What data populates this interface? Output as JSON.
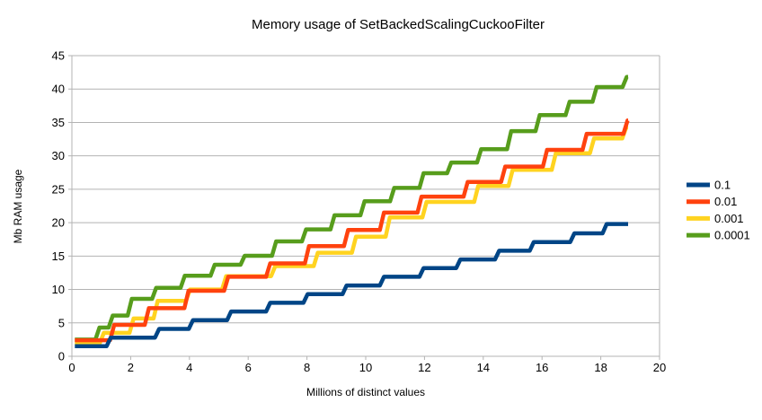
{
  "chart_data": {
    "type": "line",
    "subtype": "step",
    "title": "Memory usage of SetBackedScalingCuckooFilter",
    "xlabel": "Millions of distinct values",
    "ylabel": "Mb RAM usage",
    "xlim": [
      0,
      20
    ],
    "ylim": [
      0,
      45
    ],
    "x_ticks": [
      0,
      2,
      4,
      6,
      8,
      10,
      12,
      14,
      16,
      18,
      20
    ],
    "y_ticks": [
      0,
      5,
      10,
      15,
      20,
      25,
      30,
      35,
      40,
      45
    ],
    "grid": "horizontal",
    "legend_position": "right",
    "background": "#ffffff",
    "grid_color": "#b3b3b3",
    "axis_color": "#b3b3b3",
    "text_color": "#000000",
    "x_start": 0.1,
    "x_end": 18.93,
    "series": [
      {
        "name": "0.1",
        "color": "#004586",
        "steps": [
          [
            0.1,
            1.5
          ],
          [
            1.25,
            2.8
          ],
          [
            2.9,
            4.1
          ],
          [
            4.05,
            5.4
          ],
          [
            5.35,
            6.7
          ],
          [
            6.68,
            8.0
          ],
          [
            7.95,
            9.3
          ],
          [
            9.28,
            10.6
          ],
          [
            10.55,
            11.9
          ],
          [
            11.9,
            13.2
          ],
          [
            13.15,
            14.5
          ],
          [
            14.47,
            15.8
          ],
          [
            15.65,
            17.1
          ],
          [
            17.03,
            18.4
          ],
          [
            18.13,
            19.8
          ]
        ]
      },
      {
        "name": "0.01",
        "color": "#ff420e",
        "steps": [
          [
            0.1,
            2.4
          ],
          [
            1.37,
            4.7
          ],
          [
            2.55,
            7.2
          ],
          [
            3.9,
            9.8
          ],
          [
            5.25,
            11.9
          ],
          [
            6.68,
            13.9
          ],
          [
            8.0,
            16.5
          ],
          [
            9.33,
            18.9
          ],
          [
            10.55,
            21.5
          ],
          [
            11.83,
            23.9
          ],
          [
            13.4,
            26.1
          ],
          [
            14.68,
            28.4
          ],
          [
            16.1,
            30.9
          ],
          [
            17.45,
            33.3
          ],
          [
            18.84,
            35.3
          ]
        ]
      },
      {
        "name": "0.001",
        "color": "#ffd320",
        "steps": [
          [
            0.1,
            2.0
          ],
          [
            1.02,
            3.5
          ],
          [
            2.03,
            5.65
          ],
          [
            2.85,
            8.3
          ],
          [
            3.95,
            10.0
          ],
          [
            5.18,
            12.0
          ],
          [
            6.85,
            13.5
          ],
          [
            8.3,
            15.5
          ],
          [
            9.6,
            17.9
          ],
          [
            10.75,
            20.8
          ],
          [
            12.0,
            23.1
          ],
          [
            13.76,
            25.5
          ],
          [
            14.93,
            27.9
          ],
          [
            16.4,
            30.4
          ],
          [
            17.7,
            32.6
          ],
          [
            18.8,
            34.3
          ]
        ]
      },
      {
        "name": "0.0001",
        "color": "#579d1c",
        "steps": [
          [
            0.1,
            2.5
          ],
          [
            0.87,
            4.3
          ],
          [
            1.32,
            6.1
          ],
          [
            1.97,
            8.6
          ],
          [
            2.8,
            10.25
          ],
          [
            3.77,
            12.05
          ],
          [
            4.79,
            13.7
          ],
          [
            5.81,
            15.05
          ],
          [
            6.88,
            17.2
          ],
          [
            7.9,
            19.0
          ],
          [
            8.87,
            21.1
          ],
          [
            9.89,
            23.2
          ],
          [
            10.9,
            25.2
          ],
          [
            11.9,
            27.4
          ],
          [
            12.84,
            29.0
          ],
          [
            13.86,
            31.0
          ],
          [
            14.88,
            33.7
          ],
          [
            15.85,
            36.1
          ],
          [
            16.87,
            38.1
          ],
          [
            17.79,
            40.3
          ],
          [
            18.81,
            41.8
          ]
        ]
      }
    ]
  }
}
